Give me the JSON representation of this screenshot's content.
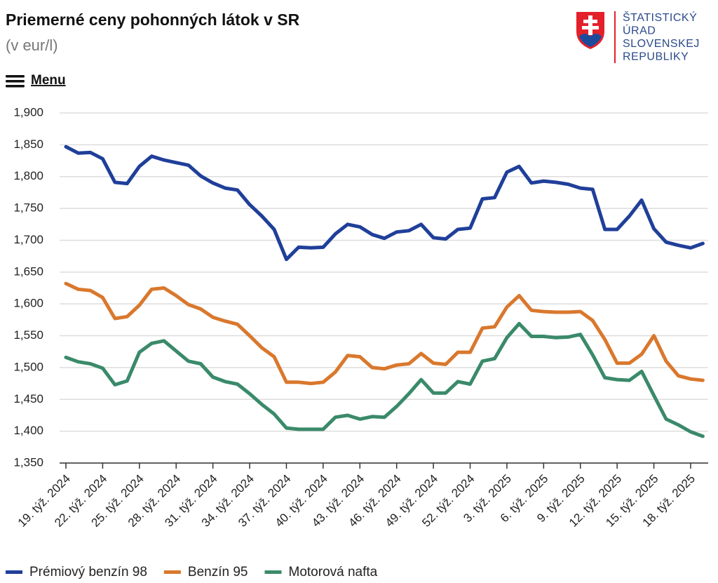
{
  "header": {
    "logo_text": [
      "ŠTATISTICKÝ",
      "ÚRAD",
      "SLOVENSKEJ",
      "REPUBLIKY"
    ],
    "menu": "Menu"
  },
  "chart_data": {
    "type": "line",
    "title": "Priemerné ceny pohonných látok v SR",
    "subtitle": "(v eur/l)",
    "categories": [
      "19. týž. 2024",
      null,
      null,
      "22. týž. 2024",
      null,
      null,
      "25. týž. 2024",
      null,
      null,
      "28. týž. 2024",
      null,
      null,
      "31. týž. 2024",
      null,
      null,
      "34. týž. 2024",
      null,
      null,
      "37. týž. 2024",
      null,
      null,
      "40. týž. 2024",
      null,
      null,
      "43. týž. 2024",
      null,
      null,
      "46. týž. 2024",
      null,
      null,
      "49. týž. 2024",
      null,
      null,
      "52. týž. 2024",
      null,
      null,
      "3. týž. 2025",
      null,
      null,
      "6. týž. 2025",
      null,
      null,
      "9. týž. 2025",
      null,
      null,
      "12. týž. 2025",
      null,
      null,
      "15. týž. 2025",
      null,
      null,
      "18. týž. 2025",
      null
    ],
    "series": [
      {
        "name": "Prémiový benzín 98",
        "color": "#1f3f99",
        "values": [
          1.847,
          1.837,
          1.838,
          1.828,
          1.791,
          1.789,
          1.816,
          1.832,
          1.826,
          1.822,
          1.818,
          1.801,
          1.79,
          1.782,
          1.779,
          1.756,
          1.738,
          1.717,
          1.67,
          1.689,
          1.688,
          1.689,
          1.71,
          1.725,
          1.721,
          1.709,
          1.703,
          1.713,
          1.715,
          1.725,
          1.704,
          1.702,
          1.717,
          1.719,
          1.765,
          1.767,
          1.807,
          1.816,
          1.79,
          1.793,
          1.791,
          1.788,
          1.782,
          1.78,
          1.717,
          1.717,
          1.738,
          1.763,
          1.718,
          1.697,
          1.692,
          1.688,
          1.695
        ]
      },
      {
        "name": "Benzín 95",
        "color": "#d9782d",
        "values": [
          1.632,
          1.623,
          1.621,
          1.61,
          1.577,
          1.58,
          1.598,
          1.623,
          1.625,
          1.613,
          1.599,
          1.592,
          1.579,
          1.573,
          1.568,
          1.55,
          1.531,
          1.517,
          1.477,
          1.477,
          1.475,
          1.477,
          1.493,
          1.519,
          1.517,
          1.5,
          1.498,
          1.504,
          1.506,
          1.522,
          1.507,
          1.505,
          1.524,
          1.524,
          1.562,
          1.564,
          1.595,
          1.613,
          1.59,
          1.588,
          1.587,
          1.587,
          1.588,
          1.574,
          1.544,
          1.507,
          1.507,
          1.521,
          1.55,
          1.51,
          1.487,
          1.482,
          1.48
        ]
      },
      {
        "name": "Motorová nafta",
        "color": "#3a8a6a",
        "values": [
          1.516,
          1.509,
          1.506,
          1.499,
          1.473,
          1.479,
          1.524,
          1.538,
          1.542,
          1.526,
          1.51,
          1.506,
          1.485,
          1.478,
          1.474,
          1.459,
          1.442,
          1.427,
          1.405,
          1.403,
          1.403,
          1.403,
          1.422,
          1.425,
          1.419,
          1.423,
          1.422,
          1.439,
          1.459,
          1.481,
          1.46,
          1.46,
          1.478,
          1.474,
          1.51,
          1.514,
          1.547,
          1.569,
          1.549,
          1.549,
          1.547,
          1.548,
          1.552,
          1.52,
          1.484,
          1.481,
          1.48,
          1.494,
          1.456,
          1.419,
          1.41,
          1.399,
          1.392
        ]
      }
    ],
    "ylim": [
      1.35,
      1.9
    ],
    "yticks": [
      {
        "value": 1.35,
        "label": "1,350"
      },
      {
        "value": 1.4,
        "label": "1,400"
      },
      {
        "value": 1.45,
        "label": "1,450"
      },
      {
        "value": 1.5,
        "label": "1,500"
      },
      {
        "value": 1.55,
        "label": "1,550"
      },
      {
        "value": 1.6,
        "label": "1,600"
      },
      {
        "value": 1.65,
        "label": "1,650"
      },
      {
        "value": 1.7,
        "label": "1,700"
      },
      {
        "value": 1.75,
        "label": "1,750"
      },
      {
        "value": 1.8,
        "label": "1,800"
      },
      {
        "value": 1.85,
        "label": "1,850"
      },
      {
        "value": 1.9,
        "label": "1,900"
      }
    ],
    "grid": true,
    "legend": "bottom"
  }
}
